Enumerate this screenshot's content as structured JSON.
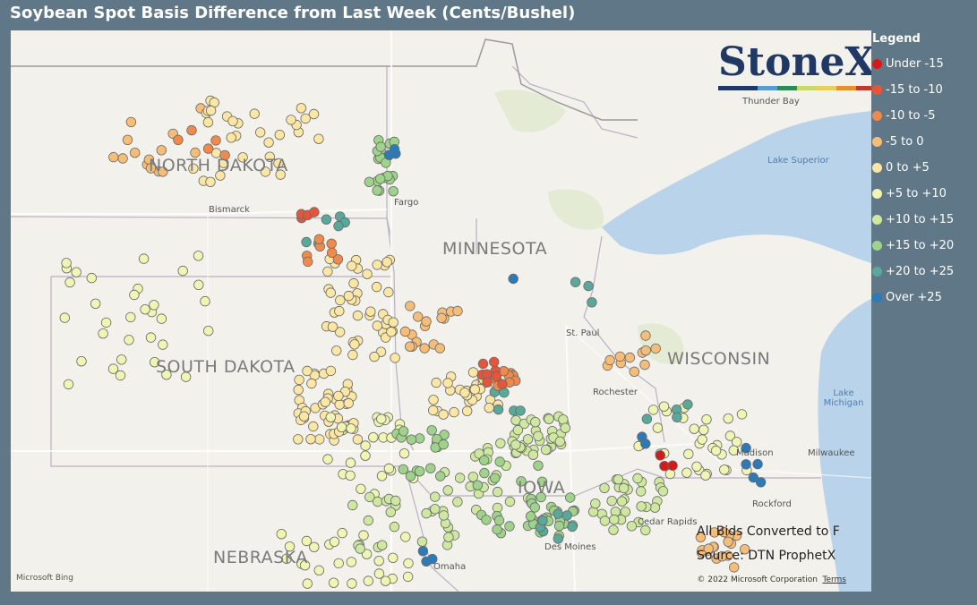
{
  "title": "Soybean Spot Basis Difference from Last Week (Cents/Bushel)",
  "legend": {
    "title": "Legend",
    "items": [
      {
        "label": "Under -15",
        "color": "#d7191c"
      },
      {
        "label": "-15 to -10",
        "color": "#e6553a"
      },
      {
        "label": "-10 to -5",
        "color": "#f08a4b"
      },
      {
        "label": "-5 to 0",
        "color": "#f6bd78"
      },
      {
        "label": "0 to +5",
        "color": "#fbe6a3"
      },
      {
        "label": "+5 to +10",
        "color": "#f0f5b3"
      },
      {
        "label": "+10 to +15",
        "color": "#cfe8a0"
      },
      {
        "label": "+15 to +20",
        "color": "#9fd28a"
      },
      {
        "label": "+20 to +25",
        "color": "#5aa89a"
      },
      {
        "label": "Over +25",
        "color": "#2c7bb6"
      }
    ]
  },
  "states": [
    "NORTH DAKOTA",
    "MINNESOTA",
    "SOUTH DAKOTA",
    "WISCONSIN",
    "NEBRASKA",
    "IOWA"
  ],
  "cities": [
    "Bismarck",
    "Fargo",
    "St. Paul",
    "Rochester",
    "Madison",
    "Milwaukee",
    "Rockford",
    "Cedar Rapids",
    "Des Moines",
    "Omaha",
    "Thunder Bay"
  ],
  "water": [
    "Lake Superior",
    "Lake Michigan"
  ],
  "logo": {
    "text": "StoneX",
    "colors": [
      "#1f3864",
      "#1f3864",
      "#5b9bd5",
      "#2e8b57",
      "#c9d86a",
      "#e8d060",
      "#e8902f",
      "#c0392b"
    ]
  },
  "notes": {
    "converted": "All Bids Converted to F",
    "source": "Source: DTN ProphetX"
  },
  "copyright": "© 2022 Microsoft Corporation",
  "terms": "Terms",
  "bing": "Microsoft Bing",
  "points_bands": {
    "description_note": "",
    "regions": [
      {
        "band": 3,
        "count": 60
      },
      {
        "band": 4,
        "count": 160
      },
      {
        "band": 5,
        "count": 120
      },
      {
        "band": 6,
        "count": 120
      },
      {
        "band": 7,
        "count": 80
      },
      {
        "band": 8,
        "count": 25
      },
      {
        "band": 2,
        "count": 20
      },
      {
        "band": 1,
        "count": 12
      },
      {
        "band": 9,
        "count": 14
      },
      {
        "band": 0,
        "count": 3
      }
    ]
  }
}
